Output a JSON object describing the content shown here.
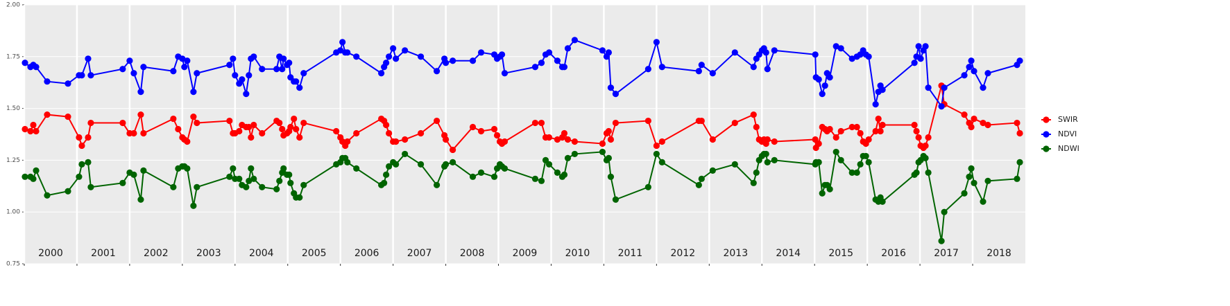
{
  "chart_data": {
    "type": "line",
    "x": [
      2000.013,
      2000.118,
      2000.171,
      2000.224,
      2000.434,
      2000.829,
      2001.039,
      2001.092,
      2001.211,
      2001.263,
      2001.868,
      2002.0,
      2002.079,
      2002.211,
      2002.263,
      2002.829,
      2002.921,
      2003.0,
      2003.039,
      2003.092,
      2003.211,
      2003.276,
      2003.895,
      2003.961,
      2004.0,
      2004.079,
      2004.132,
      2004.211,
      2004.263,
      2004.303,
      2004.355,
      2004.513,
      2004.789,
      2004.842,
      2004.895,
      2004.921,
      2004.987,
      2005.026,
      2005.053,
      2005.118,
      2005.158,
      2005.224,
      2005.303,
      2005.921,
      2006.0,
      2006.039,
      2006.092,
      2006.132,
      2006.303,
      2006.776,
      2006.829,
      2006.868,
      2006.921,
      2007.0,
      2007.053,
      2007.224,
      2007.526,
      2007.829,
      2007.974,
      2008.0,
      2008.132,
      2008.513,
      2008.671,
      2008.921,
      2008.974,
      2009.026,
      2009.066,
      2009.118,
      2009.697,
      2009.816,
      2009.895,
      2009.961,
      2010.118,
      2010.211,
      2010.25,
      2010.316,
      2010.447,
      2010.974,
      2011.053,
      2011.092,
      2011.132,
      2011.224,
      2011.842,
      2012.0,
      2012.105,
      2012.803,
      2012.855,
      2013.066,
      2013.487,
      2013.842,
      2013.895,
      2013.947,
      2014.0,
      2014.039,
      2014.079,
      2014.105,
      2014.237,
      2015.013,
      2015.026,
      2015.079,
      2015.145,
      2015.197,
      2015.237,
      2015.289,
      2015.408,
      2015.5,
      2015.711,
      2015.803,
      2015.868,
      2015.921,
      2015.974,
      2016.026,
      2016.158,
      2016.211,
      2016.25,
      2016.289,
      2016.895,
      2016.934,
      2016.974,
      2017.013,
      2017.066,
      2017.105,
      2017.158,
      2017.408,
      2017.461,
      2017.842,
      2017.934,
      2017.974,
      2018.026,
      2018.197,
      2018.289,
      2018.842,
      2018.895
    ],
    "series": [
      {
        "name": "SWIR",
        "color": "#ff0000",
        "values": [
          1.4,
          1.39,
          1.42,
          1.39,
          1.47,
          1.46,
          1.36,
          1.32,
          1.36,
          1.43,
          1.43,
          1.38,
          1.38,
          1.47,
          1.38,
          1.45,
          1.4,
          1.36,
          1.35,
          1.34,
          1.46,
          1.43,
          1.44,
          1.38,
          1.38,
          1.39,
          1.42,
          1.41,
          1.41,
          1.36,
          1.42,
          1.38,
          1.44,
          1.43,
          1.4,
          1.37,
          1.38,
          1.39,
          1.41,
          1.45,
          1.4,
          1.36,
          1.43,
          1.39,
          1.36,
          1.34,
          1.32,
          1.34,
          1.38,
          1.45,
          1.44,
          1.42,
          1.38,
          1.34,
          1.34,
          1.35,
          1.38,
          1.44,
          1.37,
          1.35,
          1.3,
          1.41,
          1.39,
          1.4,
          1.37,
          1.34,
          1.33,
          1.34,
          1.43,
          1.43,
          1.36,
          1.36,
          1.35,
          1.36,
          1.38,
          1.35,
          1.34,
          1.33,
          1.38,
          1.39,
          1.35,
          1.43,
          1.44,
          1.32,
          1.34,
          1.44,
          1.44,
          1.35,
          1.43,
          1.47,
          1.41,
          1.35,
          1.34,
          1.35,
          1.33,
          1.35,
          1.34,
          1.35,
          1.31,
          1.33,
          1.41,
          1.4,
          1.39,
          1.4,
          1.36,
          1.39,
          1.41,
          1.41,
          1.38,
          1.34,
          1.33,
          1.35,
          1.39,
          1.45,
          1.39,
          1.42,
          1.42,
          1.39,
          1.36,
          1.32,
          1.31,
          1.32,
          1.36,
          1.61,
          1.52,
          1.47,
          1.43,
          1.41,
          1.45,
          1.43,
          1.42,
          1.43,
          1.38
        ]
      },
      {
        "name": "NDVI",
        "color": "#0000ff",
        "values": [
          1.72,
          1.7,
          1.71,
          1.7,
          1.63,
          1.62,
          1.66,
          1.66,
          1.74,
          1.66,
          1.69,
          1.73,
          1.67,
          1.58,
          1.7,
          1.68,
          1.75,
          1.74,
          1.7,
          1.73,
          1.58,
          1.67,
          1.71,
          1.74,
          1.66,
          1.62,
          1.64,
          1.57,
          1.66,
          1.74,
          1.75,
          1.69,
          1.69,
          1.75,
          1.69,
          1.74,
          1.71,
          1.72,
          1.65,
          1.63,
          1.63,
          1.6,
          1.67,
          1.77,
          1.78,
          1.82,
          1.77,
          1.77,
          1.75,
          1.67,
          1.7,
          1.72,
          1.75,
          1.79,
          1.74,
          1.78,
          1.75,
          1.68,
          1.74,
          1.72,
          1.73,
          1.73,
          1.77,
          1.76,
          1.74,
          1.75,
          1.76,
          1.67,
          1.7,
          1.72,
          1.76,
          1.77,
          1.73,
          1.7,
          1.7,
          1.79,
          1.83,
          1.78,
          1.75,
          1.77,
          1.6,
          1.57,
          1.69,
          1.82,
          1.7,
          1.68,
          1.71,
          1.67,
          1.77,
          1.7,
          1.74,
          1.76,
          1.78,
          1.79,
          1.77,
          1.69,
          1.78,
          1.76,
          1.65,
          1.64,
          1.57,
          1.61,
          1.67,
          1.65,
          1.8,
          1.79,
          1.74,
          1.75,
          1.76,
          1.78,
          1.76,
          1.75,
          1.52,
          1.58,
          1.61,
          1.59,
          1.72,
          1.75,
          1.8,
          1.74,
          1.78,
          1.8,
          1.6,
          1.51,
          1.6,
          1.66,
          1.7,
          1.73,
          1.68,
          1.6,
          1.67,
          1.71,
          1.73
        ]
      },
      {
        "name": "NDWI",
        "color": "#006400",
        "values": [
          1.17,
          1.17,
          1.16,
          1.2,
          1.08,
          1.1,
          1.17,
          1.23,
          1.24,
          1.12,
          1.14,
          1.19,
          1.18,
          1.06,
          1.2,
          1.12,
          1.21,
          1.22,
          1.22,
          1.21,
          1.03,
          1.12,
          1.17,
          1.21,
          1.16,
          1.16,
          1.13,
          1.12,
          1.15,
          1.21,
          1.16,
          1.12,
          1.11,
          1.15,
          1.19,
          1.21,
          1.18,
          1.18,
          1.14,
          1.09,
          1.07,
          1.07,
          1.13,
          1.23,
          1.24,
          1.26,
          1.26,
          1.24,
          1.21,
          1.13,
          1.14,
          1.18,
          1.22,
          1.24,
          1.23,
          1.28,
          1.23,
          1.13,
          1.22,
          1.23,
          1.24,
          1.17,
          1.19,
          1.17,
          1.21,
          1.23,
          1.22,
          1.21,
          1.16,
          1.15,
          1.25,
          1.23,
          1.19,
          1.17,
          1.18,
          1.26,
          1.28,
          1.29,
          1.25,
          1.26,
          1.17,
          1.06,
          1.12,
          1.28,
          1.24,
          1.13,
          1.16,
          1.2,
          1.23,
          1.14,
          1.19,
          1.25,
          1.27,
          1.28,
          1.28,
          1.24,
          1.25,
          1.23,
          1.24,
          1.24,
          1.09,
          1.13,
          1.13,
          1.11,
          1.29,
          1.25,
          1.19,
          1.19,
          1.23,
          1.27,
          1.27,
          1.24,
          1.06,
          1.05,
          1.07,
          1.05,
          1.18,
          1.19,
          1.24,
          1.25,
          1.27,
          1.26,
          1.19,
          0.86,
          1.0,
          1.09,
          1.17,
          1.21,
          1.14,
          1.05,
          1.15,
          1.16,
          1.24
        ]
      }
    ],
    "annotations": [
      "2000",
      "2001",
      "2002",
      "2003",
      "2004",
      "2005",
      "2006",
      "2007",
      "2008",
      "2009",
      "2010",
      "2011",
      "2012",
      "2013",
      "2014",
      "2015",
      "2016",
      "2017",
      "2018"
    ],
    "xlim": [
      2000,
      2019
    ],
    "xticks": [
      2000,
      2001,
      2002,
      2003,
      2004,
      2005,
      2006,
      2007,
      2008,
      2009,
      2010,
      2011,
      2012,
      2013,
      2014,
      2015,
      2016,
      2017,
      2018
    ],
    "ylim": [
      0.75,
      2
    ],
    "yticks": [
      {
        "value": 0.75,
        "label": "0.75"
      },
      {
        "value": 1,
        "label": "1.00"
      },
      {
        "value": 1.25,
        "label": "1.25"
      },
      {
        "value": 1.5,
        "label": "1.50"
      },
      {
        "value": 1.75,
        "label": "1.75"
      },
      {
        "value": 2,
        "label": "2.00"
      }
    ],
    "grid": true,
    "legend": "right"
  }
}
